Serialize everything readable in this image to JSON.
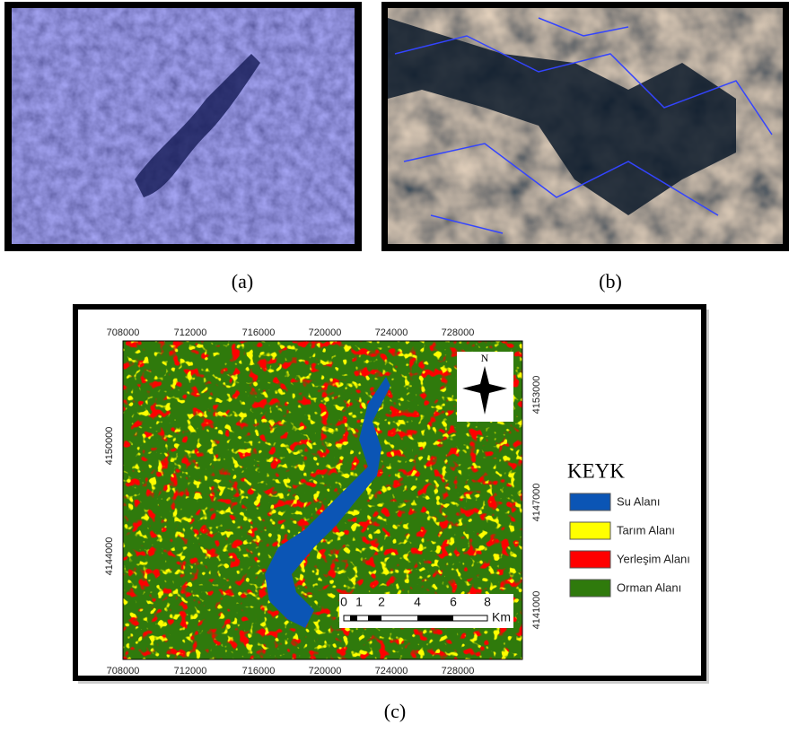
{
  "panels": {
    "a": {
      "caption": "(a)"
    },
    "b": {
      "caption": "(b)"
    },
    "c": {
      "caption": "(c)",
      "x_labels": [
        "708000",
        "712000",
        "716000",
        "720000",
        "724000",
        "728000"
      ],
      "y_left_labels": [
        "4150000",
        "4144000"
      ],
      "y_right_labels": [
        "4153000",
        "4147000",
        "4141000"
      ],
      "north": "N",
      "scale": {
        "labels": [
          "0",
          "1",
          "2",
          "4",
          "6",
          "8"
        ],
        "unit": "Km"
      },
      "legend": {
        "title": "KEYK",
        "items": [
          {
            "label": "Su Alanı",
            "color": "#0b55b5"
          },
          {
            "label": "Tarım Alanı",
            "color": "#ffff00"
          },
          {
            "label": "Yerleşim Alanı",
            "color": "#ff0000"
          },
          {
            "label": "Orman Alanı",
            "color": "#2f7a0c"
          }
        ]
      }
    }
  }
}
